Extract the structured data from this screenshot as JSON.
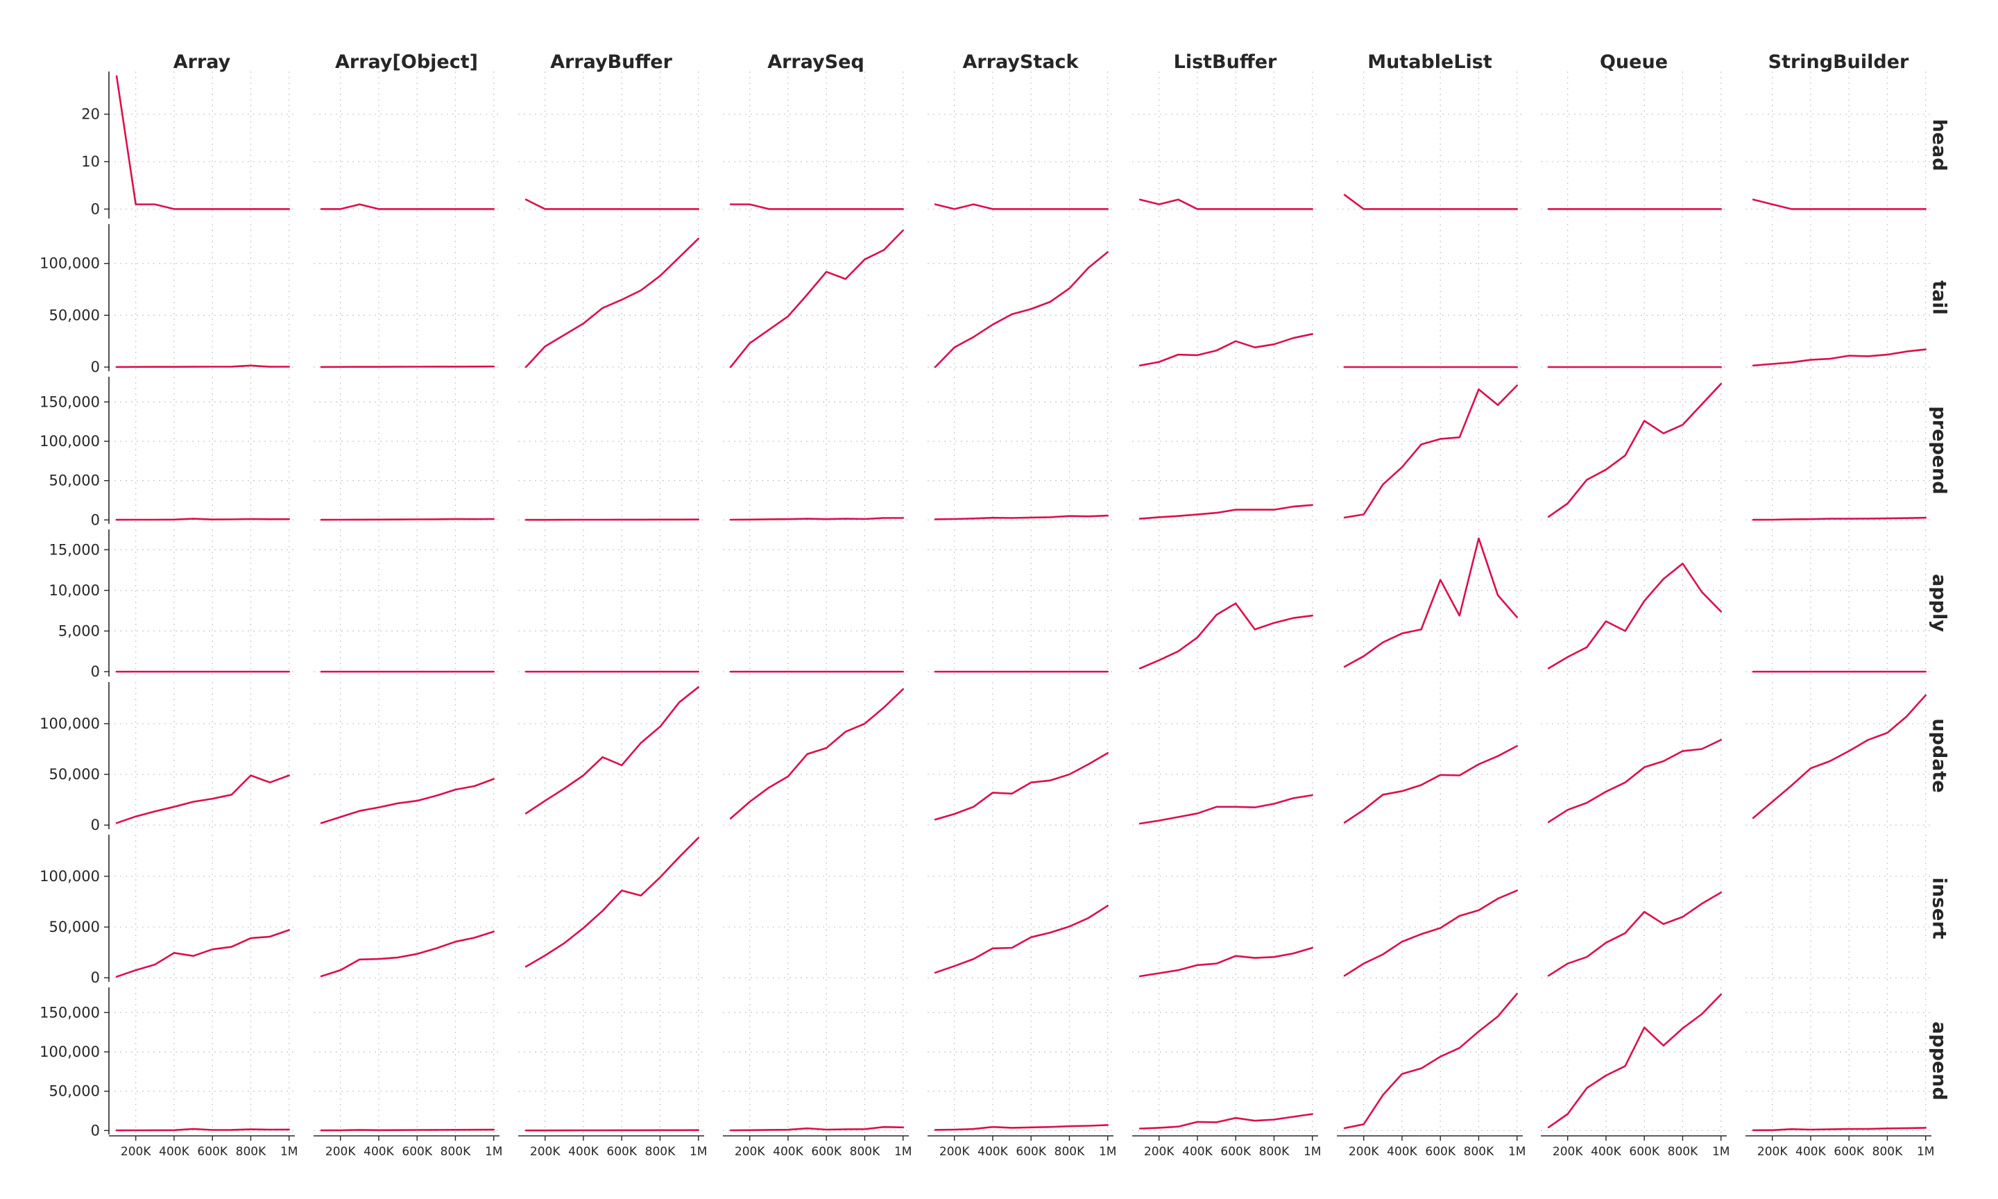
{
  "chart_data": {
    "type": "line",
    "line_color": "#dc0f4b",
    "grid": true,
    "grid_style": "dotted",
    "x": [
      100000,
      200000,
      300000,
      400000,
      500000,
      600000,
      700000,
      800000,
      900000,
      1000000
    ],
    "xlim": [
      60000,
      1030000
    ],
    "xticks": [
      200000,
      400000,
      600000,
      800000,
      1000000
    ],
    "xtick_labels": [
      "200K",
      "400K",
      "600K",
      "800K",
      "1M"
    ],
    "columns": [
      "Array",
      "Array[Object]",
      "ArrayBuffer",
      "ArraySeq",
      "ArrayStack",
      "ListBuffer",
      "MutableList",
      "Queue",
      "StringBuilder"
    ],
    "rows": [
      {
        "name": "head",
        "ylim": [
          -2,
          29
        ],
        "yticks": [
          0,
          10,
          20
        ],
        "ytick_labels": [
          "0",
          "10",
          "20"
        ],
        "series": [
          [
            28,
            1,
            1,
            0,
            0,
            0,
            0,
            0,
            0,
            0
          ],
          [
            0,
            0,
            1,
            0,
            0,
            0,
            0,
            0,
            0,
            0
          ],
          [
            2,
            0,
            0,
            0,
            0,
            0,
            0,
            0,
            0,
            0
          ],
          [
            1,
            1,
            0,
            0,
            0,
            0,
            0,
            0,
            0,
            0
          ],
          [
            1,
            0,
            1,
            0,
            0,
            0,
            0,
            0,
            0,
            0
          ],
          [
            2,
            1,
            2,
            0,
            0,
            0,
            0,
            0,
            0,
            0
          ],
          [
            3,
            0,
            0,
            0,
            0,
            0,
            0,
            0,
            0,
            0
          ],
          [
            0,
            0,
            0,
            0,
            0,
            0,
            0,
            0,
            0,
            0
          ],
          [
            2,
            1,
            0,
            0,
            0,
            0,
            0,
            0,
            0,
            0
          ]
        ]
      },
      {
        "name": "tail",
        "ylim": [
          -4000,
          138000
        ],
        "yticks": [
          0,
          50000,
          100000
        ],
        "ytick_labels": [
          "0",
          "50,000",
          "100,000"
        ],
        "series": [
          [
            100,
            150,
            200,
            250,
            300,
            350,
            400,
            1500,
            300,
            350
          ],
          [
            100,
            150,
            200,
            250,
            300,
            350,
            400,
            450,
            500,
            550
          ],
          [
            0,
            20000,
            31000,
            42000,
            57000,
            65000,
            74000,
            88000,
            106000,
            124000
          ],
          [
            0,
            23000,
            36000,
            49000,
            70000,
            92000,
            85000,
            104000,
            113000,
            132000
          ],
          [
            0,
            19000,
            29000,
            41000,
            51000,
            56000,
            63000,
            76000,
            96000,
            111000
          ],
          [
            1500,
            5000,
            12000,
            11500,
            16000,
            25000,
            19000,
            22000,
            28000,
            32000
          ],
          [
            0,
            0,
            0,
            0,
            0,
            0,
            0,
            0,
            0,
            0
          ],
          [
            0,
            0,
            0,
            0,
            0,
            0,
            0,
            0,
            0,
            0
          ],
          [
            1500,
            3000,
            4500,
            7000,
            8000,
            11000,
            10500,
            12000,
            15000,
            17000
          ]
        ]
      },
      {
        "name": "prepend",
        "ylim": [
          -5000,
          182000
        ],
        "yticks": [
          0,
          50000,
          100000,
          150000
        ],
        "ytick_labels": [
          "0",
          "50,000",
          "100,000",
          "150,000"
        ],
        "series": [
          [
            200,
            250,
            300,
            500,
            1500,
            600,
            700,
            1200,
            900,
            1000
          ],
          [
            200,
            250,
            400,
            500,
            600,
            700,
            800,
            1100,
            1000,
            1200
          ],
          [
            100,
            150,
            200,
            250,
            300,
            350,
            400,
            450,
            500,
            550
          ],
          [
            300,
            500,
            800,
            1000,
            1500,
            1000,
            1500,
            1200,
            2500,
            2500
          ],
          [
            800,
            1200,
            1800,
            2800,
            2500,
            3000,
            3500,
            5000,
            4500,
            5500
          ],
          [
            1500,
            3500,
            5000,
            7000,
            9000,
            13000,
            13000,
            13000,
            17000,
            19000
          ],
          [
            3000,
            7000,
            45000,
            67000,
            96000,
            103000,
            105000,
            166000,
            146000,
            171000
          ],
          [
            4000,
            21000,
            51000,
            64000,
            82000,
            126000,
            110000,
            121000,
            147000,
            173000
          ],
          [
            200,
            300,
            800,
            1000,
            1500,
            1500,
            1700,
            2000,
            2300,
            2800
          ]
        ]
      },
      {
        "name": "apply",
        "ylim": [
          -600,
          17500
        ],
        "yticks": [
          0,
          5000,
          10000,
          15000
        ],
        "ytick_labels": [
          "0",
          "5,000",
          "10,000",
          "15,000"
        ],
        "series": [
          [
            0,
            0,
            0,
            0,
            0,
            0,
            0,
            0,
            0,
            0
          ],
          [
            0,
            0,
            0,
            0,
            0,
            0,
            0,
            0,
            0,
            0
          ],
          [
            0,
            0,
            0,
            0,
            0,
            0,
            0,
            0,
            0,
            0
          ],
          [
            0,
            0,
            0,
            0,
            0,
            0,
            0,
            0,
            0,
            0
          ],
          [
            0,
            0,
            0,
            0,
            0,
            0,
            0,
            0,
            0,
            0
          ],
          [
            400,
            1400,
            2500,
            4200,
            7000,
            8400,
            5200,
            6000,
            6600,
            6900
          ],
          [
            600,
            1900,
            3600,
            4700,
            5200,
            11300,
            6900,
            16400,
            9400,
            6700
          ],
          [
            400,
            1800,
            3000,
            6200,
            5000,
            8700,
            11400,
            13300,
            9800,
            7400
          ],
          [
            0,
            0,
            0,
            0,
            0,
            0,
            0,
            0,
            0,
            0
          ]
        ]
      },
      {
        "name": "update",
        "ylim": [
          -4000,
          141000
        ],
        "yticks": [
          0,
          50000,
          100000
        ],
        "ytick_labels": [
          "0",
          "50,000",
          "100,000"
        ],
        "series": [
          [
            2000,
            8500,
            13500,
            18000,
            23000,
            26000,
            30000,
            49000,
            42000,
            49000
          ],
          [
            2000,
            8000,
            14000,
            17500,
            21500,
            24000,
            29000,
            35000,
            38500,
            45500
          ],
          [
            11500,
            24000,
            36000,
            49000,
            67000,
            59000,
            81000,
            97000,
            121000,
            136000
          ],
          [
            6500,
            23000,
            37000,
            48000,
            70000,
            76000,
            92000,
            100000,
            116000,
            134000
          ],
          [
            5500,
            11000,
            18000,
            32000,
            31000,
            42000,
            44000,
            50000,
            60000,
            71000
          ],
          [
            1500,
            4500,
            8000,
            11500,
            18000,
            18000,
            17500,
            21000,
            26500,
            29500
          ],
          [
            2500,
            15000,
            30000,
            33500,
            39500,
            49500,
            49000,
            60000,
            68000,
            78000
          ],
          [
            3000,
            15000,
            22000,
            33000,
            42000,
            57000,
            63000,
            73000,
            75000,
            84000
          ],
          [
            7000,
            23000,
            39000,
            56000,
            63000,
            73000,
            84000,
            91000,
            107000,
            128000
          ]
        ]
      },
      {
        "name": "insert",
        "ylim": [
          -4000,
          141000
        ],
        "yticks": [
          0,
          50000,
          100000
        ],
        "ytick_labels": [
          "0",
          "50,000",
          "100,000"
        ],
        "series": [
          [
            1000,
            7500,
            13000,
            24500,
            21500,
            28000,
            30500,
            39000,
            40500,
            47000
          ],
          [
            1500,
            7500,
            18000,
            18500,
            20000,
            23500,
            29000,
            35500,
            39500,
            45500
          ],
          [
            11000,
            22000,
            34000,
            49000,
            66000,
            86000,
            81000,
            99000,
            119000,
            138000
          ],
          null,
          [
            5000,
            11500,
            18500,
            29000,
            29500,
            40000,
            44500,
            50500,
            59000,
            71000
          ],
          [
            1500,
            4500,
            7500,
            12500,
            14000,
            21500,
            19500,
            20500,
            24000,
            29500
          ],
          [
            2000,
            14000,
            23000,
            35500,
            43000,
            49000,
            61000,
            66500,
            78000,
            86000
          ],
          [
            2000,
            14000,
            20500,
            34500,
            44000,
            65000,
            53000,
            60000,
            73000,
            84000
          ],
          null
        ]
      },
      {
        "name": "append",
        "ylim": [
          -5000,
          182000
        ],
        "yticks": [
          0,
          50000,
          100000,
          150000
        ],
        "ytick_labels": [
          "0",
          "50,000",
          "100,000",
          "150,000"
        ],
        "series": [
          [
            200,
            300,
            400,
            500,
            2000,
            700,
            800,
            1500,
            1200,
            1300
          ],
          [
            200,
            300,
            800,
            500,
            600,
            700,
            800,
            900,
            1000,
            1100
          ],
          [
            100,
            150,
            200,
            250,
            300,
            350,
            400,
            450,
            500,
            550
          ],
          [
            300,
            500,
            800,
            1000,
            2800,
            1200,
            1500,
            1800,
            4500,
            4000
          ],
          [
            800,
            1200,
            2000,
            4500,
            3500,
            4000,
            4500,
            5500,
            6000,
            7000
          ],
          [
            2500,
            3500,
            5000,
            11000,
            10500,
            16000,
            12500,
            14000,
            17500,
            21000
          ],
          [
            3000,
            8000,
            45000,
            72000,
            79000,
            94000,
            105000,
            126000,
            145000,
            174000
          ],
          [
            4000,
            21000,
            54000,
            70000,
            82000,
            131000,
            108000,
            130000,
            148000,
            173000
          ],
          [
            400,
            500,
            1800,
            1200,
            1500,
            2000,
            2000,
            2700,
            3000,
            3500
          ]
        ]
      }
    ]
  }
}
